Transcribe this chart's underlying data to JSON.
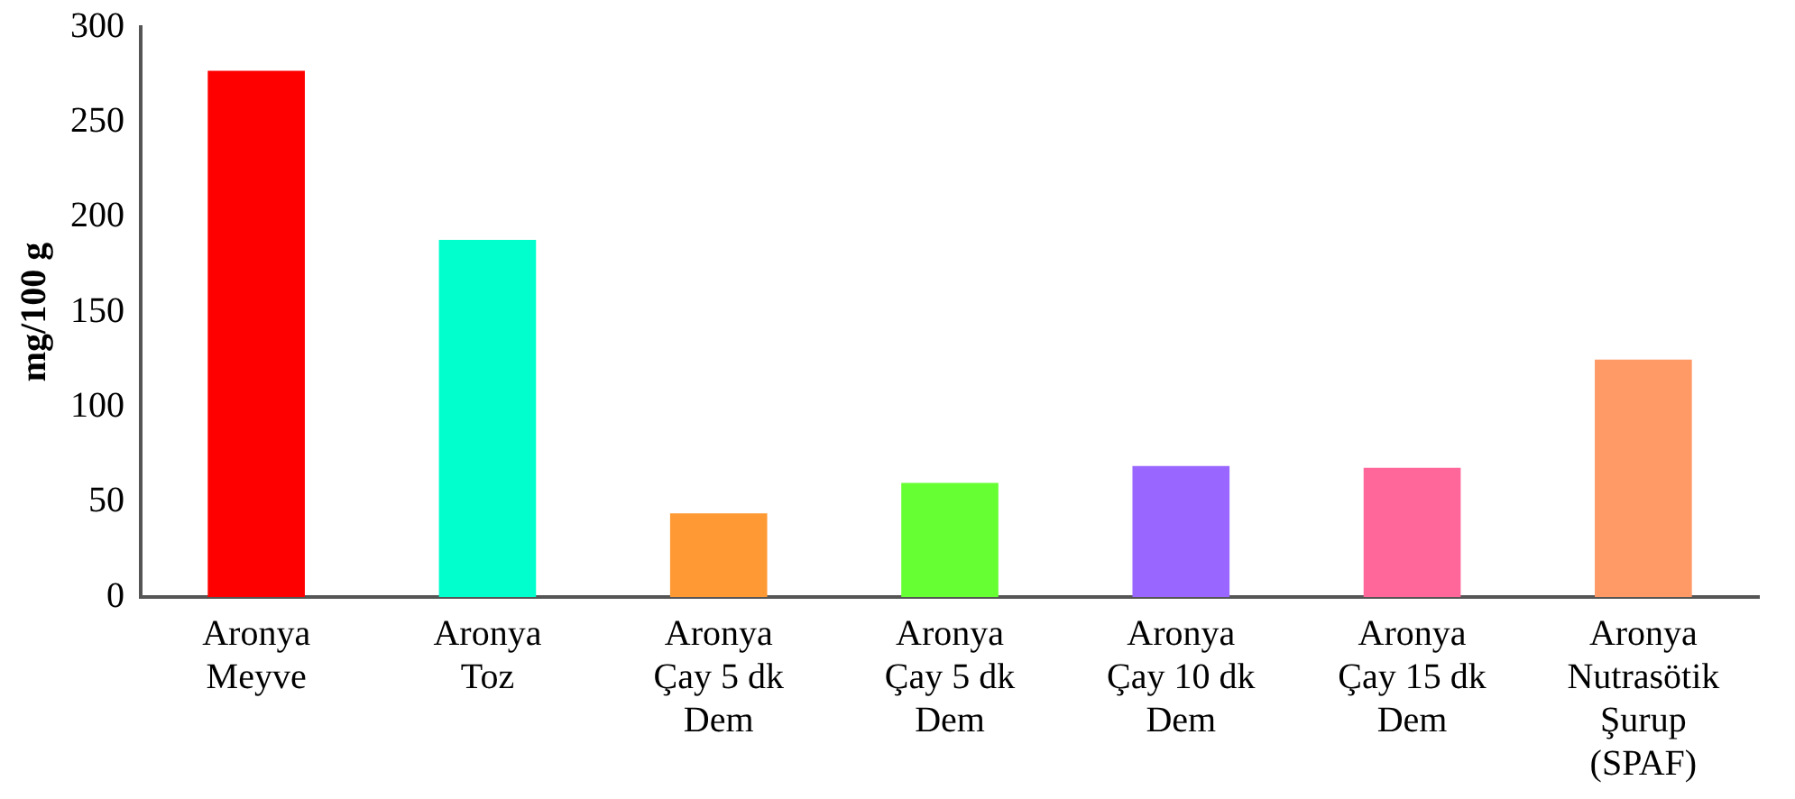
{
  "chart_data": {
    "type": "bar",
    "ylabel": "mg/100 g",
    "categories": [
      "Aronya\nMeyve",
      "Aronya\nToz",
      "Aronya\nÇay 5 dk\nDem",
      "Aronya\nÇay 5 dk\nDem",
      "Aronya\nÇay 10 dk\nDem",
      "Aronya\nÇay 15 dk\nDem",
      "Aronya\nNutrasötik\nŞurup\n(SPAF)"
    ],
    "values": [
      277,
      188,
      44,
      60,
      69,
      68,
      125
    ],
    "colors": [
      "#ff0000",
      "#00ffcc",
      "#ff9933",
      "#66ff33",
      "#9966ff",
      "#ff6699",
      "#ff9966"
    ],
    "ylim": [
      0,
      300
    ],
    "yticks": [
      0,
      50,
      100,
      150,
      200,
      250,
      300
    ],
    "grid": false,
    "legend": false
  }
}
